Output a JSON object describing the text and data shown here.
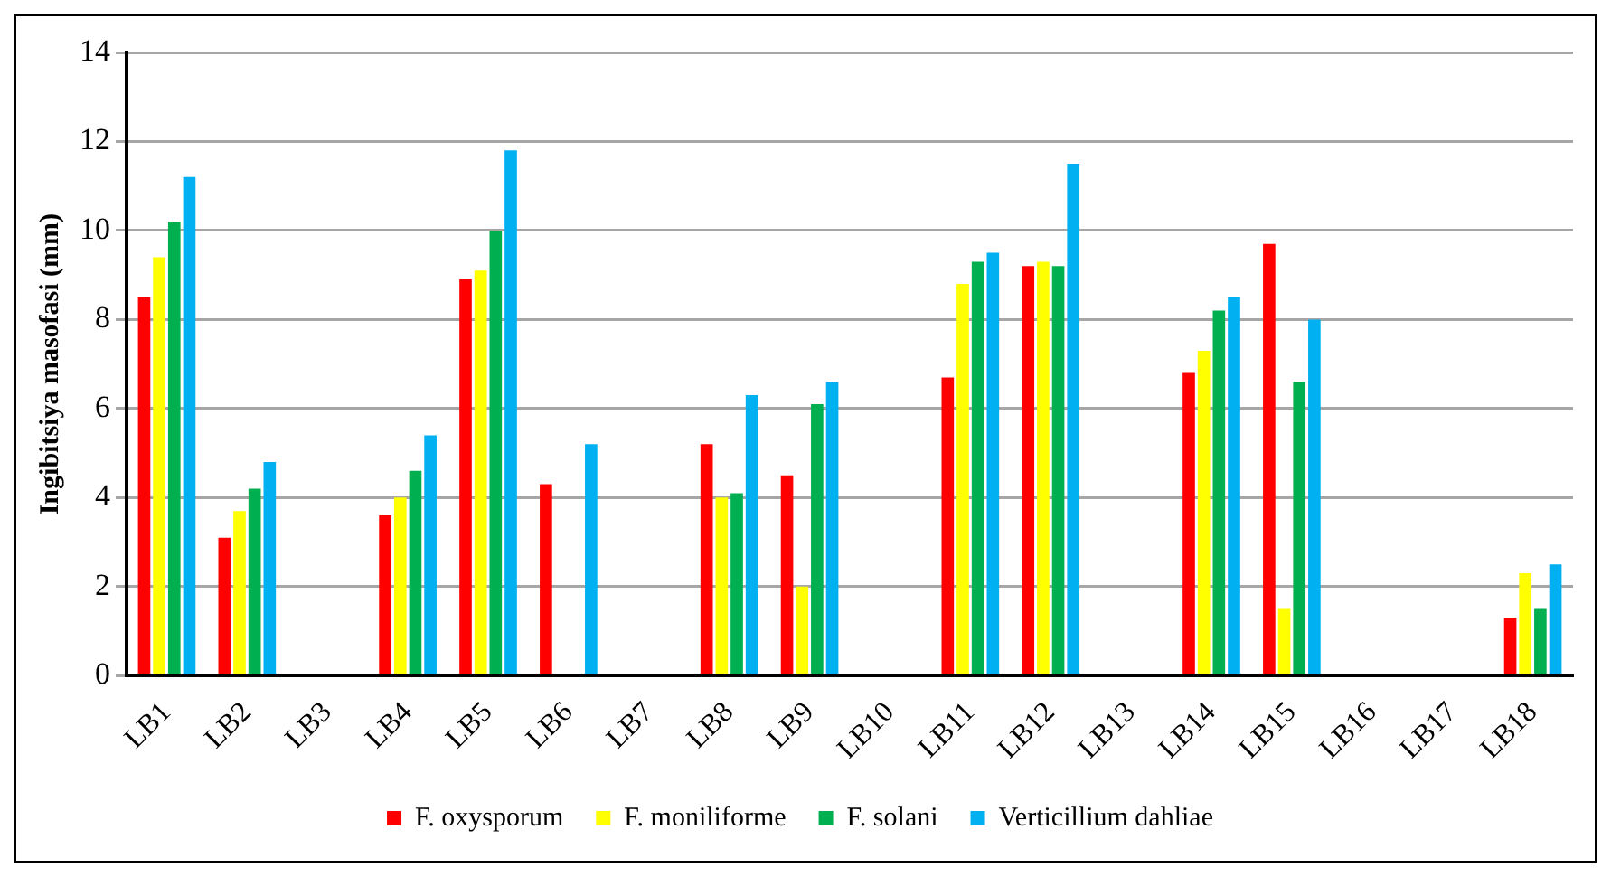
{
  "chart_data": {
    "type": "bar",
    "ylabel": "Ingibitsiya masofasi (mm)",
    "categories": [
      "LB1",
      "LB2",
      "LB3",
      "LB4",
      "LB5",
      "LB6",
      "LB7",
      "LB8",
      "LB9",
      "LB10",
      "LB11",
      "LB12",
      "LB13",
      "LB14",
      "LB15",
      "LB16",
      "LB17",
      "LB18"
    ],
    "series": [
      {
        "name": "F. oxysporum",
        "color": "#ff0000",
        "values": [
          8.5,
          3.1,
          null,
          3.6,
          8.9,
          4.3,
          null,
          5.2,
          4.5,
          null,
          6.7,
          9.2,
          null,
          6.8,
          9.7,
          null,
          null,
          1.3
        ]
      },
      {
        "name": "F. moniliforme",
        "color": "#ffff00",
        "values": [
          9.4,
          3.7,
          null,
          4.0,
          9.1,
          null,
          null,
          4.0,
          2.0,
          null,
          8.8,
          9.3,
          null,
          7.3,
          1.5,
          null,
          null,
          2.3
        ]
      },
      {
        "name": "F. solani",
        "color": "#00b050",
        "values": [
          10.2,
          4.2,
          null,
          4.6,
          10.0,
          null,
          null,
          4.1,
          6.1,
          null,
          9.3,
          9.2,
          null,
          8.2,
          6.6,
          null,
          null,
          1.5
        ]
      },
      {
        "name": "Verticillium dahliae",
        "color": "#00b0f0",
        "values": [
          11.2,
          4.8,
          null,
          5.4,
          11.8,
          5.2,
          null,
          6.3,
          6.6,
          null,
          9.5,
          11.5,
          null,
          8.5,
          8.0,
          null,
          null,
          2.5
        ]
      }
    ],
    "ylim": [
      0,
      14
    ],
    "yticks": [
      0,
      2,
      4,
      6,
      8,
      10,
      12,
      14
    ],
    "grid": "y",
    "legend": "bottom"
  }
}
